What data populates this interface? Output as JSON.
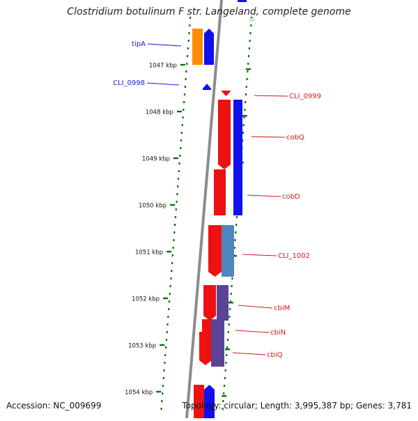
{
  "title": "Clostridium botulinum F str. Langeland, complete genome",
  "footer": {
    "accession": "Accession: NC_009699",
    "topology": "Topology: circular; Length: 3,995,387 bp; Genes: 3,781"
  },
  "kbp_labels": [
    "1047 kbp",
    "1048 kbp",
    "1049 kbp",
    "1050 kbp",
    "1051 kbp",
    "1052 kbp",
    "1053 kbp",
    "1054 kbp"
  ],
  "colors": {
    "reverse_label": "#1a1acc",
    "forward_label": "#cc1a1a",
    "red": "#ee1111",
    "blue": "#1010ee",
    "orange": "#ff8c00",
    "steel": "#4e86bd",
    "purple": "#5a4496",
    "tick": "#0a6e0a",
    "backbone": "#8c8c8c"
  },
  "genes": [
    {
      "name": "tipA",
      "side": "left"
    },
    {
      "name": "CLI_0998",
      "side": "left"
    },
    {
      "name": "CLI_0999",
      "side": "right"
    },
    {
      "name": "cobQ",
      "side": "right"
    },
    {
      "name": "cobD",
      "side": "right"
    },
    {
      "name": "CLI_1002",
      "side": "right"
    },
    {
      "name": "cbiM",
      "side": "right"
    },
    {
      "name": "cbiN",
      "side": "right"
    },
    {
      "name": "cbiQ",
      "side": "right"
    }
  ]
}
